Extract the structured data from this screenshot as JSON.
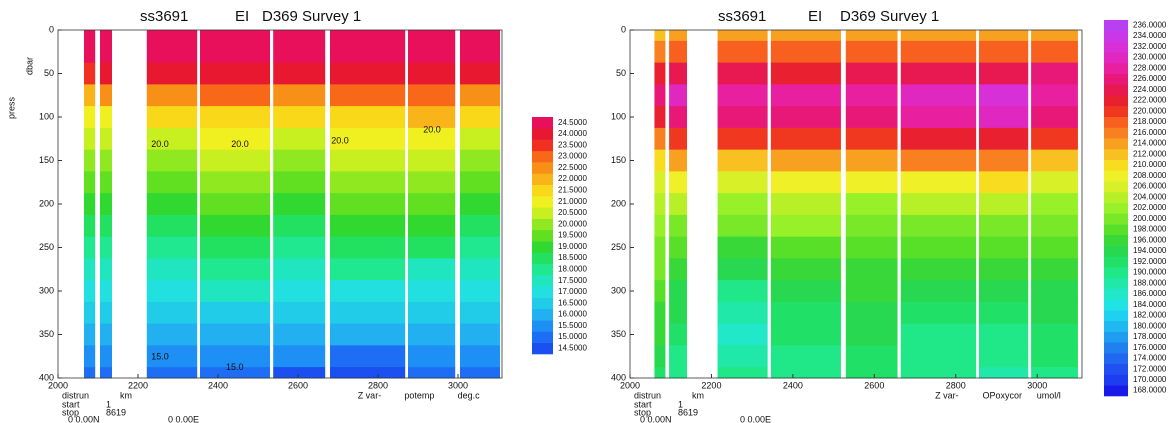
{
  "chart_data": [
    {
      "type": "contour",
      "title_parts": [
        "ss3691",
        "EI",
        "D369 Survey 1"
      ],
      "y_axis_labels": [
        "dbar",
        "press"
      ],
      "x_label": "distrun",
      "x_unit": "km",
      "z_label": "Z var-",
      "variable": "potemp",
      "units": "deg.c",
      "start_label": "start",
      "start": 1,
      "stop_label": "stop",
      "stop": 8619,
      "lat": "0  0.00N",
      "lon": "0  0.00E",
      "xlim": [
        2000,
        3110
      ],
      "xticks": [
        2000,
        2200,
        2400,
        2600,
        2800,
        3000
      ],
      "ylim": [
        0,
        400
      ],
      "yticks": [
        0,
        50,
        100,
        150,
        200,
        250,
        300,
        350,
        400
      ],
      "y_inverted": true,
      "segments": [
        [
          2065,
          2093
        ],
        [
          2105,
          2135
        ],
        [
          2222,
          2348
        ],
        [
          2355,
          2530
        ],
        [
          2538,
          2668
        ],
        [
          2680,
          2868
        ],
        [
          2875,
          2993
        ],
        [
          3005,
          3105
        ]
      ],
      "depths": [
        0,
        25,
        50,
        75,
        100,
        125,
        150,
        175,
        200,
        225,
        250,
        275,
        300,
        325,
        350,
        375,
        400
      ],
      "z": [
        [
          24.5,
          24.5,
          24.5,
          24.5,
          24.5,
          24.5,
          24.5,
          24.5
        ],
        [
          24.5,
          24.5,
          24.5,
          24.5,
          24.5,
          24.5,
          24.5,
          24.5
        ],
        [
          23.5,
          24.0,
          24.0,
          24.0,
          24.0,
          24.0,
          24.0,
          24.0
        ],
        [
          22.0,
          22.5,
          22.5,
          23.0,
          22.5,
          23.0,
          23.0,
          22.5
        ],
        [
          21.0,
          21.0,
          21.5,
          21.5,
          21.5,
          21.5,
          22.0,
          21.5
        ],
        [
          20.5,
          20.5,
          20.5,
          21.0,
          20.5,
          21.0,
          21.0,
          20.5
        ],
        [
          20.0,
          20.0,
          20.0,
          20.5,
          20.0,
          20.5,
          20.5,
          20.0
        ],
        [
          19.5,
          19.5,
          19.5,
          20.0,
          19.5,
          20.0,
          20.0,
          19.5
        ],
        [
          19.0,
          19.0,
          19.0,
          19.5,
          19.0,
          19.5,
          19.5,
          19.0
        ],
        [
          18.5,
          18.5,
          18.5,
          19.0,
          18.5,
          19.0,
          19.0,
          18.5
        ],
        [
          18.0,
          18.0,
          18.0,
          18.5,
          18.0,
          18.5,
          18.5,
          18.0
        ],
        [
          17.5,
          17.5,
          17.5,
          18.0,
          17.5,
          18.0,
          17.5,
          17.5
        ],
        [
          17.0,
          17.0,
          17.0,
          17.5,
          17.0,
          17.0,
          17.0,
          17.0
        ],
        [
          16.5,
          16.5,
          16.5,
          16.5,
          16.5,
          16.5,
          16.5,
          16.5
        ],
        [
          16.0,
          16.0,
          16.0,
          16.0,
          16.0,
          16.0,
          16.0,
          16.0
        ],
        [
          15.5,
          15.5,
          15.5,
          15.5,
          15.5,
          15.0,
          15.5,
          15.5
        ],
        [
          15.0,
          15.0,
          15.0,
          15.0,
          14.5,
          14.5,
          15.0,
          15.0
        ]
      ],
      "levels": [
        {
          "value": 14.5,
          "label": "14.5000"
        },
        {
          "value": 15,
          "label": "15.0000"
        },
        {
          "value": 15.5,
          "label": "15.5000"
        },
        {
          "value": 16,
          "label": "16.0000"
        },
        {
          "value": 16.5,
          "label": "16.5000"
        },
        {
          "value": 17,
          "label": "17.0000"
        },
        {
          "value": 17.5,
          "label": "17.5000"
        },
        {
          "value": 18,
          "label": "18.0000"
        },
        {
          "value": 18.5,
          "label": "18.5000"
        },
        {
          "value": 19,
          "label": "19.0000"
        },
        {
          "value": 19.5,
          "label": "19.5000"
        },
        {
          "value": 20,
          "label": "20.0000"
        },
        {
          "value": 20.5,
          "label": "20.5000"
        },
        {
          "value": 21,
          "label": "21.0000"
        },
        {
          "value": 21.5,
          "label": "21.5000"
        },
        {
          "value": 22,
          "label": "22.0000"
        },
        {
          "value": 22.5,
          "label": "22.5000"
        },
        {
          "value": 23,
          "label": "23.0000"
        },
        {
          "value": 23.5,
          "label": "23.5000"
        },
        {
          "value": 24,
          "label": "24.0000"
        },
        {
          "value": 24.5,
          "label": "24.5000"
        }
      ],
      "colors": [
        "#1a4ff0",
        "#1e6ef5",
        "#1e90f5",
        "#22b0f0",
        "#20cce8",
        "#22e0e0",
        "#20e6c0",
        "#20e890",
        "#22e060",
        "#30d830",
        "#60e020",
        "#90e820",
        "#c8f020",
        "#f0f020",
        "#f8d818",
        "#f8b418",
        "#f89018",
        "#f86818",
        "#f03020",
        "#e81830",
        "#e8105a"
      ],
      "annotations": [
        {
          "text": "20.0",
          "x": 2255,
          "y": 132
        },
        {
          "text": "20.0",
          "x": 2455,
          "y": 132
        },
        {
          "text": "20.0",
          "x": 2705,
          "y": 128
        },
        {
          "text": "20.0",
          "x": 2935,
          "y": 115
        },
        {
          "text": "15.0",
          "x": 2255,
          "y": 376
        },
        {
          "text": "15.0",
          "x": 2442,
          "y": 388
        }
      ]
    },
    {
      "type": "contour",
      "title_parts": [
        "ss3691",
        "EI",
        "D369 Survey 1"
      ],
      "x_label": "distrun",
      "x_unit": "km",
      "z_label": "Z var-",
      "variable": "OPoxycor",
      "units": "umol/l",
      "start_label": "start",
      "start": 1,
      "stop_label": "stop",
      "stop": 8619,
      "lat": "0  0.00N",
      "lon": "0  0.00E",
      "xlim": [
        2000,
        3110
      ],
      "xticks": [
        2000,
        2200,
        2400,
        2600,
        2800,
        3000
      ],
      "ylim": [
        0,
        400
      ],
      "yticks": [
        0,
        50,
        100,
        150,
        200,
        250,
        300,
        350,
        400
      ],
      "y_inverted": true,
      "segments": [
        [
          2060,
          2087
        ],
        [
          2096,
          2140
        ],
        [
          2215,
          2338
        ],
        [
          2346,
          2518
        ],
        [
          2530,
          2657
        ],
        [
          2665,
          2850
        ],
        [
          2857,
          2978
        ],
        [
          2985,
          3100
        ]
      ],
      "depths": [
        0,
        25,
        50,
        75,
        100,
        125,
        150,
        175,
        200,
        225,
        250,
        275,
        300,
        325,
        350,
        375,
        400
      ],
      "z": [
        [
          212,
          214,
          214,
          214,
          214,
          214,
          214,
          214
        ],
        [
          216,
          218,
          218,
          218,
          218,
          218,
          218,
          218
        ],
        [
          222,
          224,
          224,
          222,
          224,
          224,
          224,
          226
        ],
        [
          226,
          230,
          228,
          228,
          228,
          230,
          232,
          228
        ],
        [
          222,
          226,
          226,
          226,
          226,
          228,
          230,
          226
        ],
        [
          216,
          220,
          220,
          220,
          220,
          222,
          222,
          220
        ],
        [
          210,
          214,
          212,
          214,
          214,
          216,
          216,
          212
        ],
        [
          206,
          208,
          206,
          208,
          208,
          208,
          210,
          206
        ],
        [
          204,
          204,
          202,
          204,
          202,
          204,
          204,
          202
        ],
        [
          202,
          200,
          200,
          202,
          200,
          200,
          200,
          200
        ],
        [
          200,
          198,
          196,
          198,
          198,
          198,
          198,
          198
        ],
        [
          200,
          196,
          194,
          196,
          196,
          196,
          196,
          196
        ],
        [
          198,
          194,
          190,
          194,
          196,
          194,
          194,
          194
        ],
        [
          196,
          194,
          188,
          192,
          194,
          192,
          192,
          194
        ],
        [
          196,
          192,
          186,
          192,
          194,
          190,
          190,
          192
        ],
        [
          194,
          190,
          188,
          190,
          192,
          190,
          190,
          192
        ],
        [
          192,
          190,
          190,
          190,
          192,
          190,
          188,
          190
        ]
      ],
      "levels": [
        {
          "value": 168,
          "label": "168.0000"
        },
        {
          "value": 170,
          "label": "170.0000"
        },
        {
          "value": 172,
          "label": "172.0000"
        },
        {
          "value": 174,
          "label": "174.0000"
        },
        {
          "value": 176,
          "label": "176.0000"
        },
        {
          "value": 178,
          "label": "178.0000"
        },
        {
          "value": 180,
          "label": "180.0000"
        },
        {
          "value": 182,
          "label": "182.0000"
        },
        {
          "value": 184,
          "label": "184.0000"
        },
        {
          "value": 186,
          "label": "186.0000"
        },
        {
          "value": 188,
          "label": "188.0000"
        },
        {
          "value": 190,
          "label": "190.0000"
        },
        {
          "value": 192,
          "label": "192.0000"
        },
        {
          "value": 194,
          "label": "194.0000"
        },
        {
          "value": 196,
          "label": "196.0000"
        },
        {
          "value": 198,
          "label": "198.0000"
        },
        {
          "value": 200,
          "label": "200.0000"
        },
        {
          "value": 202,
          "label": "202.0000"
        },
        {
          "value": 204,
          "label": "204.0000"
        },
        {
          "value": 206,
          "label": "206.0000"
        },
        {
          "value": 208,
          "label": "208.0000"
        },
        {
          "value": 210,
          "label": "210.0000"
        },
        {
          "value": 212,
          "label": "212.0000"
        },
        {
          "value": 214,
          "label": "214.0000"
        },
        {
          "value": 216,
          "label": "216.0000"
        },
        {
          "value": 218,
          "label": "218.0000"
        },
        {
          "value": 220,
          "label": "220.0000"
        },
        {
          "value": 222,
          "label": "222.0000"
        },
        {
          "value": 224,
          "label": "224.0000"
        },
        {
          "value": 226,
          "label": "226.0000"
        },
        {
          "value": 228,
          "label": "228.0000"
        },
        {
          "value": 230,
          "label": "230.0000"
        },
        {
          "value": 232,
          "label": "232.0000"
        },
        {
          "value": 234,
          "label": "234.0000"
        },
        {
          "value": 236,
          "label": "236.0000"
        }
      ],
      "colors": [
        "#1a1ae8",
        "#1e3cf0",
        "#2050f0",
        "#2068f0",
        "#2080f0",
        "#209cf0",
        "#20b8f0",
        "#20d0f0",
        "#20e4e4",
        "#20e8c8",
        "#20e8a8",
        "#20e888",
        "#20e068",
        "#28d850",
        "#38d838",
        "#58e028",
        "#78e828",
        "#98f028",
        "#b8f028",
        "#d8f028",
        "#f0f028",
        "#f8dc20",
        "#f8c020",
        "#f8a020",
        "#f88020",
        "#f86020",
        "#f03820",
        "#e82030",
        "#e81850",
        "#e81878",
        "#e820a0",
        "#e028c0",
        "#d830d8",
        "#c838e8",
        "#b840f0"
      ]
    }
  ]
}
